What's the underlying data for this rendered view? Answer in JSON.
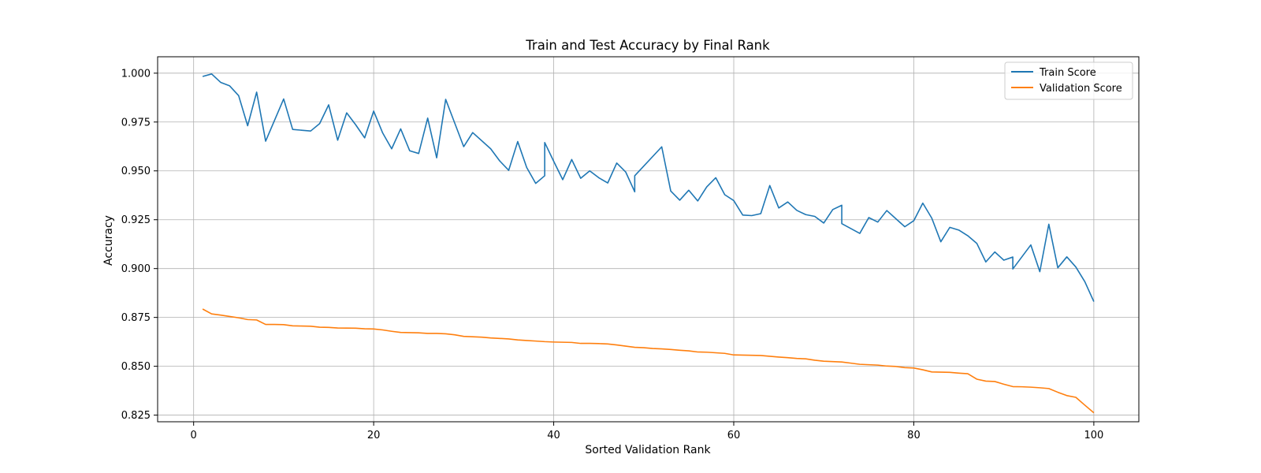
{
  "chart_data": {
    "type": "line",
    "title": "Train and Test Accuracy by Final Rank",
    "xlabel": "Sorted Validation Rank",
    "ylabel": "Accuracy",
    "xlim": [
      -4,
      105
    ],
    "ylim": [
      0.8216,
      1.0084
    ],
    "xticks": [
      0,
      20,
      40,
      60,
      80,
      100
    ],
    "xtick_labels": [
      "0",
      "20",
      "40",
      "60",
      "80",
      "100"
    ],
    "yticks": [
      0.825,
      0.85,
      0.875,
      0.9,
      0.925,
      0.95,
      0.975,
      1.0
    ],
    "ytick_labels": [
      "0.825",
      "0.850",
      "0.875",
      "0.900",
      "0.925",
      "0.950",
      "0.975",
      "1.000"
    ],
    "grid": true,
    "legend_position": "top-right",
    "series": [
      {
        "name": "Train Score",
        "color": "#1f77b4",
        "points": [
          [
            1,
            0.9983
          ],
          [
            2,
            0.9996
          ],
          [
            3,
            0.9953
          ],
          [
            4,
            0.9935
          ],
          [
            5,
            0.9885
          ],
          [
            6,
            0.9731
          ],
          [
            7,
            0.9903
          ],
          [
            8,
            0.9652
          ],
          [
            10,
            0.9868
          ],
          [
            11,
            0.9712
          ],
          [
            13,
            0.9704
          ],
          [
            14,
            0.9742
          ],
          [
            15,
            0.9838
          ],
          [
            16,
            0.9657
          ],
          [
            17,
            0.9797
          ],
          [
            18,
            0.9736
          ],
          [
            19,
            0.9669
          ],
          [
            20,
            0.9806
          ],
          [
            21,
            0.9694
          ],
          [
            22,
            0.9613
          ],
          [
            23,
            0.9715
          ],
          [
            24,
            0.9603
          ],
          [
            25,
            0.9589
          ],
          [
            26,
            0.977
          ],
          [
            27,
            0.9567
          ],
          [
            28,
            0.9866
          ],
          [
            29,
            0.9745
          ],
          [
            30,
            0.9624
          ],
          [
            31,
            0.9696
          ],
          [
            33,
            0.9613
          ],
          [
            34,
            0.9551
          ],
          [
            35,
            0.9503
          ],
          [
            36,
            0.965
          ],
          [
            37,
            0.9517
          ],
          [
            38,
            0.9436
          ],
          [
            39,
            0.9475
          ],
          [
            39,
            0.9645
          ],
          [
            40,
            0.9549
          ],
          [
            41,
            0.9455
          ],
          [
            42,
            0.9558
          ],
          [
            43,
            0.9462
          ],
          [
            44,
            0.95
          ],
          [
            45,
            0.9465
          ],
          [
            46,
            0.9438
          ],
          [
            47,
            0.954
          ],
          [
            48,
            0.9494
          ],
          [
            49,
            0.9393
          ],
          [
            49,
            0.9475
          ],
          [
            52,
            0.9623
          ],
          [
            53,
            0.9397
          ],
          [
            54,
            0.935
          ],
          [
            55,
            0.9401
          ],
          [
            56,
            0.9346
          ],
          [
            57,
            0.9418
          ],
          [
            58,
            0.9465
          ],
          [
            59,
            0.9378
          ],
          [
            60,
            0.9348
          ],
          [
            61,
            0.9274
          ],
          [
            62,
            0.9271
          ],
          [
            63,
            0.9281
          ],
          [
            64,
            0.9425
          ],
          [
            65,
            0.931
          ],
          [
            66,
            0.9341
          ],
          [
            67,
            0.9298
          ],
          [
            68,
            0.9276
          ],
          [
            69,
            0.9267
          ],
          [
            70,
            0.9233
          ],
          [
            71,
            0.9302
          ],
          [
            72,
            0.9324
          ],
          [
            72,
            0.923
          ],
          [
            74,
            0.918
          ],
          [
            75,
            0.9261
          ],
          [
            76,
            0.9238
          ],
          [
            77,
            0.9297
          ],
          [
            79,
            0.9214
          ],
          [
            80,
            0.9245
          ],
          [
            81,
            0.9335
          ],
          [
            82,
            0.9258
          ],
          [
            83,
            0.9137
          ],
          [
            84,
            0.9211
          ],
          [
            85,
            0.9197
          ],
          [
            86,
            0.9168
          ],
          [
            87,
            0.9129
          ],
          [
            88,
            0.9034
          ],
          [
            89,
            0.9085
          ],
          [
            90,
            0.9043
          ],
          [
            91,
            0.9059
          ],
          [
            91,
            0.8998
          ],
          [
            93,
            0.9121
          ],
          [
            94,
            0.8984
          ],
          [
            95,
            0.9227
          ],
          [
            96,
            0.9004
          ],
          [
            97,
            0.906
          ],
          [
            98,
            0.9008
          ],
          [
            99,
            0.8933
          ],
          [
            100,
            0.8831
          ]
        ]
      },
      {
        "name": "Validation Score",
        "color": "#ff7f0e",
        "points": [
          [
            1,
            0.8793
          ],
          [
            2,
            0.8768
          ],
          [
            3,
            0.8762
          ],
          [
            4,
            0.8755
          ],
          [
            5,
            0.8748
          ],
          [
            6,
            0.8739
          ],
          [
            7,
            0.8737
          ],
          [
            8,
            0.8714
          ],
          [
            9,
            0.8714
          ],
          [
            10,
            0.8713
          ],
          [
            11,
            0.8707
          ],
          [
            12,
            0.8706
          ],
          [
            13,
            0.8705
          ],
          [
            14,
            0.87
          ],
          [
            15,
            0.8699
          ],
          [
            16,
            0.8696
          ],
          [
            18,
            0.8695
          ],
          [
            19,
            0.8692
          ],
          [
            20,
            0.8691
          ],
          [
            21,
            0.8686
          ],
          [
            22,
            0.8679
          ],
          [
            23,
            0.8673
          ],
          [
            25,
            0.8671
          ],
          [
            26,
            0.8668
          ],
          [
            27,
            0.8668
          ],
          [
            28,
            0.8666
          ],
          [
            29,
            0.8661
          ],
          [
            30,
            0.8653
          ],
          [
            32,
            0.8649
          ],
          [
            33,
            0.8645
          ],
          [
            35,
            0.864
          ],
          [
            36,
            0.8635
          ],
          [
            37,
            0.8632
          ],
          [
            38,
            0.8629
          ],
          [
            39,
            0.8626
          ],
          [
            40,
            0.8624
          ],
          [
            42,
            0.8622
          ],
          [
            43,
            0.8617
          ],
          [
            44,
            0.8617
          ],
          [
            45,
            0.8616
          ],
          [
            46,
            0.8614
          ],
          [
            47,
            0.8609
          ],
          [
            48,
            0.8603
          ],
          [
            49,
            0.8597
          ],
          [
            50,
            0.8595
          ],
          [
            51,
            0.8591
          ],
          [
            52,
            0.8589
          ],
          [
            53,
            0.8586
          ],
          [
            54,
            0.8582
          ],
          [
            55,
            0.8579
          ],
          [
            56,
            0.8573
          ],
          [
            57,
            0.8572
          ],
          [
            58,
            0.8569
          ],
          [
            59,
            0.8566
          ],
          [
            60,
            0.8558
          ],
          [
            61,
            0.8557
          ],
          [
            63,
            0.8555
          ],
          [
            64,
            0.8551
          ],
          [
            65,
            0.8547
          ],
          [
            66,
            0.8544
          ],
          [
            67,
            0.854
          ],
          [
            68,
            0.8538
          ],
          [
            69,
            0.8531
          ],
          [
            70,
            0.8526
          ],
          [
            72,
            0.8522
          ],
          [
            73,
            0.8516
          ],
          [
            74,
            0.851
          ],
          [
            76,
            0.8506
          ],
          [
            77,
            0.8501
          ],
          [
            78,
            0.8499
          ],
          [
            79,
            0.8493
          ],
          [
            80,
            0.8491
          ],
          [
            81,
            0.8482
          ],
          [
            82,
            0.8471
          ],
          [
            83,
            0.847
          ],
          [
            84,
            0.8469
          ],
          [
            85,
            0.8465
          ],
          [
            86,
            0.8462
          ],
          [
            87,
            0.8434
          ],
          [
            88,
            0.8424
          ],
          [
            89,
            0.8422
          ],
          [
            90,
            0.8408
          ],
          [
            91,
            0.8396
          ],
          [
            92,
            0.8395
          ],
          [
            93,
            0.8393
          ],
          [
            94,
            0.839
          ],
          [
            95,
            0.8386
          ],
          [
            96,
            0.8367
          ],
          [
            97,
            0.835
          ],
          [
            98,
            0.8341
          ],
          [
            99,
            0.8301
          ],
          [
            100,
            0.8262
          ]
        ]
      }
    ]
  }
}
